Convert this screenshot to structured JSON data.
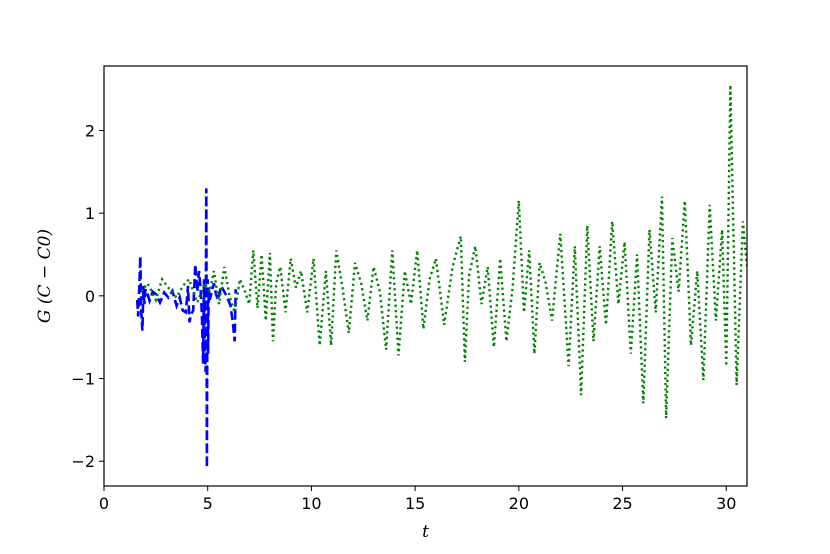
{
  "chart_data": {
    "type": "line",
    "title": "",
    "xlabel": "t",
    "ylabel": "G (C − C0)",
    "xlim": [
      0,
      31
    ],
    "ylim": [
      -2.3,
      2.78
    ],
    "xticks": [
      0,
      5,
      10,
      15,
      20,
      25,
      30
    ],
    "yticks": [
      -2,
      -1,
      0,
      1,
      2
    ],
    "grid": false,
    "legend": "none",
    "series": [
      {
        "color": "#0000ff",
        "linestyle": "dashed",
        "x": [
          1.6,
          1.65,
          1.7,
          1.75,
          1.8,
          1.85,
          1.9,
          1.95,
          2.0,
          2.1,
          2.2,
          2.35,
          2.5,
          2.7,
          2.9,
          3.1,
          3.3,
          3.5,
          3.65,
          3.8,
          3.95,
          4.05,
          4.12,
          4.2,
          4.3,
          4.4,
          4.5,
          4.58,
          4.65,
          4.72,
          4.78,
          4.82,
          4.86,
          4.9,
          4.93,
          4.96,
          4.98,
          5.0,
          5.02,
          5.05,
          5.1,
          5.2,
          5.3,
          5.4,
          5.5,
          5.65,
          5.8,
          5.95,
          6.1,
          6.2,
          6.3,
          6.35
        ],
        "y": [
          -0.05,
          -0.25,
          0.1,
          0.48,
          -0.2,
          -0.42,
          0.12,
          -0.1,
          0.08,
          0.02,
          -0.06,
          0.05,
          0.02,
          -0.08,
          0.04,
          -0.02,
          0.06,
          -0.12,
          -0.02,
          -0.18,
          -0.2,
          0.12,
          -0.32,
          -0.22,
          -0.18,
          0.38,
          0.05,
          0.3,
          0.1,
          -0.22,
          -0.82,
          0.2,
          -0.6,
          -0.92,
          1.3,
          -2.08,
          -0.45,
          0.2,
          -0.7,
          0.1,
          -0.05,
          0.06,
          0.15,
          0.02,
          -0.05,
          0.12,
          0.05,
          -0.02,
          -0.12,
          -0.3,
          -0.55,
          0.08
        ]
      },
      {
        "color": "#008000",
        "linestyle": "dotted",
        "x": [
          1.8,
          2.1,
          2.5,
          2.8,
          3.1,
          3.5,
          3.8,
          4.1,
          4.5,
          4.85,
          5.1,
          5.3,
          5.55,
          5.8,
          6.05,
          6.3,
          6.55,
          6.8,
          7.0,
          7.2,
          7.4,
          7.6,
          7.8,
          8.0,
          8.15,
          8.3,
          8.5,
          8.75,
          9.0,
          9.25,
          9.5,
          9.8,
          10.1,
          10.4,
          10.7,
          10.95,
          11.2,
          11.5,
          11.8,
          12.1,
          12.4,
          12.7,
          13.0,
          13.3,
          13.6,
          13.9,
          14.2,
          14.5,
          14.8,
          15.1,
          15.4,
          15.7,
          16.0,
          16.4,
          16.8,
          17.2,
          17.4,
          17.6,
          17.9,
          18.2,
          18.5,
          18.8,
          19.1,
          19.4,
          19.7,
          20.0,
          20.25,
          20.5,
          20.75,
          21.0,
          21.3,
          21.6,
          22.0,
          22.4,
          22.7,
          23.0,
          23.3,
          23.6,
          23.9,
          24.2,
          24.5,
          24.8,
          25.1,
          25.4,
          25.7,
          26.0,
          26.3,
          26.6,
          26.9,
          27.1,
          27.4,
          27.7,
          28.0,
          28.3,
          28.6,
          28.9,
          29.2,
          29.5,
          29.8,
          30.0,
          30.2,
          30.5,
          30.8,
          31.0
        ],
        "y": [
          0.05,
          0.15,
          -0.05,
          0.2,
          0.1,
          -0.02,
          0.12,
          0.2,
          -0.08,
          0.15,
          0.05,
          0.3,
          -0.1,
          0.35,
          0.0,
          -0.2,
          0.2,
          0.05,
          -0.1,
          0.55,
          -0.15,
          0.5,
          -0.3,
          0.52,
          -0.55,
          0.15,
          0.35,
          -0.2,
          0.45,
          0.1,
          0.3,
          -0.2,
          0.45,
          -0.6,
          0.3,
          -0.6,
          0.55,
          0.1,
          -0.45,
          0.4,
          0.15,
          -0.3,
          0.35,
          0.05,
          -0.65,
          0.55,
          -0.72,
          0.3,
          -0.1,
          0.55,
          -0.4,
          0.2,
          0.45,
          -0.35,
          0.35,
          0.72,
          -0.8,
          0.25,
          0.6,
          -0.1,
          0.35,
          -0.62,
          0.45,
          -0.55,
          0.1,
          1.15,
          -0.2,
          0.55,
          -0.7,
          0.4,
          0.15,
          -0.3,
          0.75,
          -0.85,
          0.6,
          -1.2,
          0.85,
          -0.55,
          0.6,
          -0.35,
          0.9,
          -0.1,
          0.65,
          -0.7,
          0.5,
          -1.3,
          0.8,
          -0.2,
          1.2,
          -1.48,
          0.7,
          0.05,
          1.15,
          -0.6,
          0.3,
          -1.02,
          1.1,
          -0.3,
          0.8,
          -0.85,
          2.55,
          -1.08,
          0.9,
          0.35
        ]
      }
    ]
  }
}
